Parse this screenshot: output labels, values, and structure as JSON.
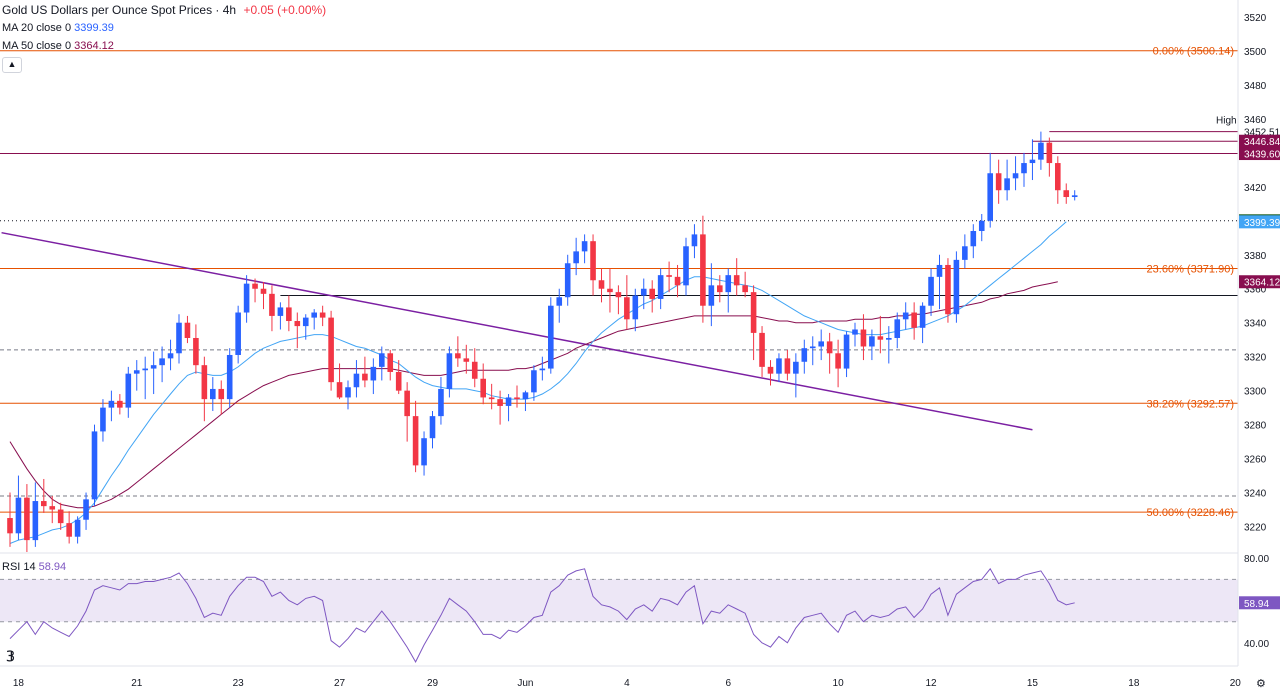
{
  "header": {
    "title": "Gold US Dollars per Ounce Spot Prices · 4h",
    "change": "+0.05 (+0.00%)",
    "ma20_label": "MA 20 close 0",
    "ma20_value": "3399.39",
    "ma50_label": "MA 50 close 0",
    "ma50_value": "3364.12",
    "rsi_label": "RSI 14",
    "rsi_value": "58.94",
    "collapse_icon": "chevron-up-icon",
    "logo_icon": "tradingview-logo-icon",
    "settings_icon": "gear-icon"
  },
  "colors": {
    "up": "#2962ff",
    "down": "#f23645",
    "ma20": "#42a5f5",
    "ma50": "#880e4f",
    "fib": "#e65100",
    "trendline": "#7b1fa2",
    "rsi": "#7e57c2",
    "rsi_band": "#ede7f6"
  },
  "chart_data": {
    "type": "candlestick",
    "title": "Gold US Dollars per Ounce Spot Prices · 4h",
    "ylim": [
      3205,
      3530
    ],
    "y_ticks": [
      3220,
      3240,
      3260,
      3280,
      3300,
      3320,
      3340,
      3360,
      3380,
      3400,
      3420,
      3440,
      3460,
      3480,
      3500,
      3520
    ],
    "x_ticks": [
      "18",
      "21",
      "23",
      "27",
      "29",
      "Jun",
      "4",
      "6",
      "10",
      "12",
      "15",
      "18",
      "20"
    ],
    "candles": [
      [
        3225,
        3240,
        3208,
        3216
      ],
      [
        3216,
        3250,
        3212,
        3237
      ],
      [
        3237,
        3245,
        3205,
        3212
      ],
      [
        3212,
        3246,
        3208,
        3235
      ],
      [
        3235,
        3248,
        3228,
        3232
      ],
      [
        3232,
        3238,
        3222,
        3230
      ],
      [
        3230,
        3234,
        3218,
        3222
      ],
      [
        3222,
        3229,
        3210,
        3214
      ],
      [
        3214,
        3226,
        3210,
        3224
      ],
      [
        3224,
        3240,
        3218,
        3236
      ],
      [
        3236,
        3280,
        3232,
        3276
      ],
      [
        3276,
        3295,
        3270,
        3290
      ],
      [
        3290,
        3300,
        3282,
        3294
      ],
      [
        3294,
        3298,
        3286,
        3290
      ],
      [
        3290,
        3314,
        3284,
        3310
      ],
      [
        3310,
        3318,
        3300,
        3312
      ],
      [
        3312,
        3320,
        3295,
        3313
      ],
      [
        3313,
        3323,
        3298,
        3315
      ],
      [
        3315,
        3326,
        3305,
        3319
      ],
      [
        3319,
        3330,
        3312,
        3322
      ],
      [
        3322,
        3345,
        3316,
        3340
      ],
      [
        3340,
        3344,
        3328,
        3331
      ],
      [
        3331,
        3339,
        3310,
        3315
      ],
      [
        3315,
        3320,
        3282,
        3295
      ],
      [
        3295,
        3308,
        3288,
        3301
      ],
      [
        3301,
        3306,
        3286,
        3295
      ],
      [
        3295,
        3325,
        3290,
        3321
      ],
      [
        3321,
        3350,
        3316,
        3346
      ],
      [
        3346,
        3368,
        3340,
        3363
      ],
      [
        3363,
        3366,
        3352,
        3360
      ],
      [
        3360,
        3364,
        3348,
        3357
      ],
      [
        3357,
        3362,
        3335,
        3344
      ],
      [
        3344,
        3352,
        3336,
        3349
      ],
      [
        3349,
        3356,
        3335,
        3341
      ],
      [
        3341,
        3346,
        3325,
        3338
      ],
      [
        3338,
        3345,
        3330,
        3343
      ],
      [
        3343,
        3348,
        3336,
        3346
      ],
      [
        3346,
        3350,
        3338,
        3343
      ],
      [
        3343,
        3347,
        3300,
        3305
      ],
      [
        3305,
        3316,
        3295,
        3296
      ],
      [
        3296,
        3306,
        3289,
        3302
      ],
      [
        3302,
        3318,
        3296,
        3310
      ],
      [
        3310,
        3320,
        3302,
        3306
      ],
      [
        3306,
        3319,
        3298,
        3314
      ],
      [
        3314,
        3326,
        3306,
        3322
      ],
      [
        3322,
        3324,
        3306,
        3311
      ],
      [
        3311,
        3318,
        3298,
        3300
      ],
      [
        3300,
        3305,
        3270,
        3285
      ],
      [
        3285,
        3294,
        3252,
        3256
      ],
      [
        3256,
        3276,
        3250,
        3272
      ],
      [
        3272,
        3288,
        3266,
        3285
      ],
      [
        3285,
        3308,
        3280,
        3301
      ],
      [
        3301,
        3326,
        3296,
        3322
      ],
      [
        3322,
        3332,
        3314,
        3319
      ],
      [
        3319,
        3327,
        3310,
        3317
      ],
      [
        3317,
        3325,
        3302,
        3307
      ],
      [
        3307,
        3316,
        3292,
        3296
      ],
      [
        3296,
        3304,
        3289,
        3295
      ],
      [
        3295,
        3300,
        3280,
        3291
      ],
      [
        3291,
        3298,
        3282,
        3296
      ],
      [
        3296,
        3303,
        3290,
        3295
      ],
      [
        3295,
        3300,
        3288,
        3299
      ],
      [
        3299,
        3315,
        3294,
        3312
      ],
      [
        3312,
        3320,
        3306,
        3313
      ],
      [
        3313,
        3355,
        3310,
        3350
      ],
      [
        3350,
        3360,
        3340,
        3355
      ],
      [
        3355,
        3380,
        3350,
        3375
      ],
      [
        3375,
        3390,
        3368,
        3382
      ],
      [
        3382,
        3392,
        3375,
        3388
      ],
      [
        3388,
        3392,
        3356,
        3365
      ],
      [
        3365,
        3372,
        3352,
        3360
      ],
      [
        3360,
        3372,
        3346,
        3358
      ],
      [
        3358,
        3362,
        3345,
        3355
      ],
      [
        3355,
        3368,
        3336,
        3342
      ],
      [
        3342,
        3360,
        3335,
        3356
      ],
      [
        3356,
        3366,
        3348,
        3360
      ],
      [
        3360,
        3365,
        3346,
        3354
      ],
      [
        3354,
        3372,
        3348,
        3368
      ],
      [
        3368,
        3376,
        3358,
        3367
      ],
      [
        3367,
        3374,
        3355,
        3362
      ],
      [
        3362,
        3390,
        3356,
        3385
      ],
      [
        3385,
        3398,
        3378,
        3392
      ],
      [
        3392,
        3403,
        3340,
        3350
      ],
      [
        3350,
        3375,
        3338,
        3362
      ],
      [
        3362,
        3368,
        3352,
        3358
      ],
      [
        3358,
        3372,
        3346,
        3368
      ],
      [
        3368,
        3378,
        3356,
        3362
      ],
      [
        3362,
        3370,
        3355,
        3358
      ],
      [
        3358,
        3362,
        3318,
        3334
      ],
      [
        3334,
        3338,
        3308,
        3314
      ],
      [
        3314,
        3318,
        3303,
        3310
      ],
      [
        3310,
        3322,
        3305,
        3319
      ],
      [
        3319,
        3324,
        3306,
        3310
      ],
      [
        3310,
        3322,
        3296,
        3317
      ],
      [
        3317,
        3330,
        3310,
        3325
      ],
      [
        3325,
        3332,
        3315,
        3326
      ],
      [
        3326,
        3336,
        3318,
        3329
      ],
      [
        3329,
        3334,
        3310,
        3322
      ],
      [
        3322,
        3330,
        3302,
        3313
      ],
      [
        3313,
        3335,
        3308,
        3333
      ],
      [
        3333,
        3340,
        3326,
        3336
      ],
      [
        3336,
        3345,
        3318,
        3326
      ],
      [
        3326,
        3336,
        3318,
        3332
      ],
      [
        3332,
        3344,
        3322,
        3330
      ],
      [
        3330,
        3338,
        3316,
        3331
      ],
      [
        3331,
        3346,
        3325,
        3342
      ],
      [
        3342,
        3352,
        3336,
        3346
      ],
      [
        3346,
        3352,
        3330,
        3337
      ],
      [
        3337,
        3352,
        3328,
        3350
      ],
      [
        3350,
        3372,
        3344,
        3367
      ],
      [
        3367,
        3380,
        3348,
        3374
      ],
      [
        3374,
        3378,
        3340,
        3345
      ],
      [
        3345,
        3382,
        3340,
        3377
      ],
      [
        3377,
        3392,
        3372,
        3385
      ],
      [
        3385,
        3398,
        3378,
        3394
      ],
      [
        3394,
        3404,
        3388,
        3400
      ],
      [
        3400,
        3440,
        3396,
        3428
      ],
      [
        3428,
        3436,
        3410,
        3418
      ],
      [
        3418,
        3436,
        3412,
        3425
      ],
      [
        3425,
        3438,
        3418,
        3428
      ],
      [
        3428,
        3440,
        3420,
        3434
      ],
      [
        3434,
        3448,
        3424,
        3436
      ],
      [
        3436,
        3452.51,
        3430,
        3446
      ],
      [
        3446,
        3449,
        3426,
        3434
      ],
      [
        3434,
        3438,
        3410,
        3418
      ],
      [
        3418,
        3422,
        3410,
        3414
      ],
      [
        3414,
        3418,
        3412,
        3415
      ]
    ],
    "ma20": [
      3210,
      3212,
      3213,
      3214,
      3216,
      3218,
      3219,
      3221,
      3224,
      3228,
      3234,
      3242,
      3250,
      3257,
      3265,
      3272,
      3279,
      3286,
      3292,
      3298,
      3304,
      3309,
      3311,
      3310,
      3309,
      3309,
      3311,
      3314,
      3318,
      3322,
      3325,
      3327,
      3329,
      3330,
      3331,
      3332,
      3333,
      3333,
      3332,
      3330,
      3328,
      3326,
      3325,
      3323,
      3321,
      3318,
      3316,
      3312,
      3308,
      3305,
      3303,
      3302,
      3301,
      3301,
      3301,
      3300,
      3299,
      3297,
      3296,
      3295,
      3295,
      3295,
      3296,
      3298,
      3301,
      3305,
      3310,
      3316,
      3323,
      3329,
      3334,
      3338,
      3342,
      3345,
      3348,
      3351,
      3353,
      3356,
      3359,
      3362,
      3365,
      3367,
      3367,
      3366,
      3365,
      3364,
      3363,
      3362,
      3361,
      3359,
      3356,
      3353,
      3350,
      3347,
      3344,
      3342,
      3340,
      3338,
      3336,
      3335,
      3334,
      3333,
      3333,
      3333,
      3334,
      3335,
      3336,
      3337,
      3338,
      3340,
      3342,
      3344,
      3347,
      3350,
      3354,
      3358,
      3362,
      3366,
      3370,
      3374,
      3378,
      3382,
      3386,
      3391,
      3395,
      3399.39
    ],
    "ma50": [
      3270,
      3262,
      3254,
      3247,
      3241,
      3236,
      3233,
      3232,
      3231,
      3231,
      3232,
      3234,
      3236,
      3239,
      3242,
      3246,
      3250,
      3254,
      3258,
      3262,
      3266,
      3270,
      3274,
      3278,
      3282,
      3286,
      3290,
      3294,
      3297,
      3300,
      3303,
      3305,
      3307,
      3309,
      3310,
      3311,
      3312,
      3313,
      3313,
      3313,
      3313,
      3313,
      3313,
      3313,
      3313,
      3313,
      3312,
      3311,
      3310,
      3309,
      3309,
      3309,
      3310,
      3311,
      3312,
      3312,
      3312,
      3312,
      3312,
      3312,
      3313,
      3313,
      3314,
      3316,
      3318,
      3320,
      3322,
      3325,
      3327,
      3329,
      3331,
      3333,
      3335,
      3336,
      3337,
      3338,
      3339,
      3340,
      3341,
      3342,
      3343,
      3344,
      3344,
      3344,
      3344,
      3344,
      3344,
      3344,
      3344,
      3343,
      3342,
      3341,
      3341,
      3340,
      3340,
      3340,
      3341,
      3341,
      3341,
      3341,
      3342,
      3342,
      3342,
      3343,
      3343,
      3344,
      3344,
      3345,
      3345,
      3346,
      3347,
      3348,
      3349,
      3350,
      3351,
      3352,
      3354,
      3355,
      3357,
      3358,
      3359,
      3361,
      3362,
      3363,
      3364.12
    ],
    "rsi": [
      42,
      46,
      50,
      44,
      50,
      47,
      45,
      43,
      48,
      55,
      65,
      67,
      66,
      65,
      68,
      68,
      69,
      69,
      70,
      71,
      73,
      68,
      61,
      52,
      54,
      53,
      62,
      67,
      71,
      71,
      69,
      62,
      64,
      60,
      58,
      61,
      62,
      60,
      41,
      38,
      42,
      47,
      45,
      50,
      55,
      50,
      44,
      38,
      31,
      39,
      46,
      53,
      61,
      58,
      55,
      50,
      44,
      44,
      42,
      46,
      45,
      48,
      52,
      53,
      64,
      67,
      72,
      74,
      75,
      62,
      58,
      57,
      55,
      51,
      56,
      58,
      55,
      61,
      60,
      58,
      64,
      67,
      49,
      55,
      54,
      58,
      56,
      54,
      44,
      40,
      38,
      43,
      40,
      47,
      52,
      53,
      54,
      49,
      45,
      53,
      55,
      50,
      53,
      52,
      53,
      56,
      57,
      52,
      56,
      63,
      66,
      53,
      63,
      66,
      69,
      70,
      75,
      68,
      70,
      70,
      72,
      73,
      74,
      68,
      60,
      58,
      58.94
    ],
    "rsi_ylim": [
      30,
      82
    ],
    "rsi_ticks": [
      40,
      80
    ],
    "rsi_band": [
      50,
      70
    ],
    "hlines": [
      {
        "value": 3500.14,
        "label": "0.00% (3500.14)",
        "style": "fib"
      },
      {
        "value": 3371.9,
        "label": "23.60% (3371.90)",
        "style": "fib"
      },
      {
        "value": 3292.57,
        "label": "38.20% (3292.57)",
        "style": "fib"
      },
      {
        "value": 3228.46,
        "label": "50.00% (3228.46)",
        "style": "fib"
      },
      {
        "value": 3439.6,
        "style": "resistance"
      },
      {
        "value": 3400,
        "style": "dotted"
      },
      {
        "value": 3356,
        "style": "support"
      },
      {
        "value": 3324,
        "style": "dashed"
      },
      {
        "value": 3238,
        "style": "dashed"
      }
    ],
    "high_markers": [
      3452.51,
      3446.84
    ],
    "trendline": {
      "start": [
        -1,
        3393
      ],
      "end": [
        121,
        3277
      ]
    },
    "axis_labels": [
      {
        "text": "3452.51",
        "value": 3452.51,
        "bg": "#ffffff",
        "fg": "#131722"
      },
      {
        "text": "3446.84",
        "value": 3446.84,
        "bg": "#880e4f",
        "fg": "#ffffff"
      },
      {
        "text": "3439.60",
        "value": 3439.6,
        "bg": "#880e4f",
        "fg": "#ffffff"
      },
      {
        "text": "3400.00",
        "value": 3400,
        "bg": "#1b5e20",
        "fg": "#ffffff"
      },
      {
        "text": "3399.39",
        "value": 3399.39,
        "bg": "#42a5f5",
        "fg": "#ffffff"
      },
      {
        "text": "3364.12",
        "value": 3364.12,
        "bg": "#880e4f",
        "fg": "#ffffff"
      },
      {
        "text": "58.94",
        "value": 58.94,
        "bg": "#7e57c2",
        "fg": "#ffffff",
        "pane": "rsi"
      }
    ],
    "high_tag": "High"
  }
}
